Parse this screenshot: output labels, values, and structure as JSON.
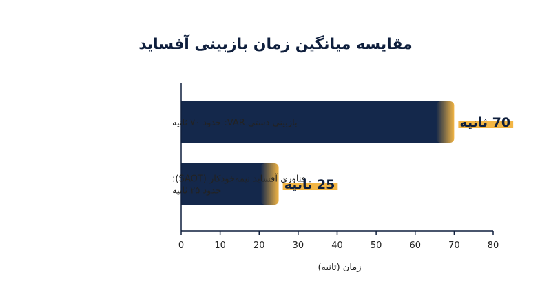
{
  "chart_data": {
    "type": "bar",
    "orientation": "horizontal",
    "title": "مقایسه میانگین زمان بازبینی آفساید",
    "xlabel": "زمان (ثانیه)",
    "xlim": [
      0,
      80
    ],
    "xticks": [
      0,
      10,
      20,
      30,
      40,
      50,
      60,
      70,
      80
    ],
    "grid": false,
    "categories": [
      [
        "بازبینی دستی VAR: حدود ۷۰ ثانیه"
      ],
      [
        "فناوری آفساید نیمه‌خودکار (SAOT):",
        "حدود ۲۵ ثانیه"
      ]
    ],
    "values": [
      70,
      25
    ],
    "data_labels": [
      "70 ثانیه",
      "25 ثانیه"
    ],
    "colors": {
      "bar": "#14284b",
      "bar_fade": "#f2b544",
      "label_highlight": "#f2b544",
      "axis": "#0f1f3d",
      "text": "#0f1f3d"
    }
  }
}
